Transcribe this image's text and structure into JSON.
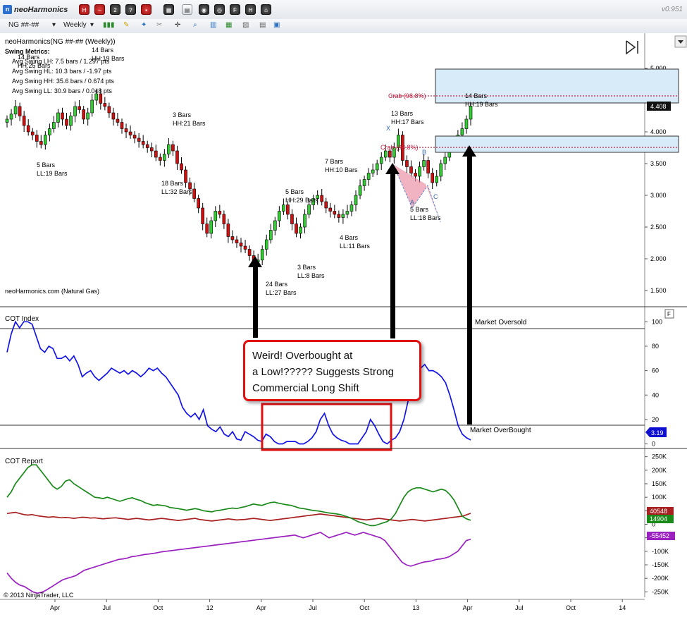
{
  "toolbar": {
    "app_name": "neoHarmonics",
    "version": "v0.951",
    "instrument": "NG ##-##",
    "interval": "Weekly"
  },
  "chart_data": [
    {
      "type": "candlestick",
      "title": "neoHarmonics(NG ##-## (Weekly))",
      "watermark": "neoHarmonics.com (Natural Gas)",
      "ylim": [
        1.3,
        5.5
      ],
      "y_ticks": [
        "5.000",
        "4.500",
        "4.000",
        "3.500",
        "3.000",
        "2.500",
        "2.000",
        "1.500"
      ],
      "x_ticks": [
        "Apr",
        "Jul",
        "Oct",
        "12",
        "Apr",
        "Jul",
        "Oct",
        "13",
        "Apr",
        "Jul",
        "Oct",
        "14"
      ],
      "last_price": "4.408",
      "swing_metrics": {
        "title": "Swing Metrics:",
        "lines": [
          "Avg Swing LH: 7.5 bars / 1.297 pts",
          "Avg Swing HL: 10.3 bars / -1.97 pts",
          "Avg Swing HH: 35.6 bars / 0.674 pts",
          "Avg Swing LL: 30.9 bars / 0.048 pts"
        ]
      },
      "swing_labels": [
        {
          "l1": "14 Bars",
          "l2": "HH:25 Bars"
        },
        {
          "l1": "14 Bars",
          "l2": "HH:19 Bars"
        },
        {
          "l1": "5 Bars",
          "l2": "LL:19 Bars"
        },
        {
          "l1": "3 Bars",
          "l2": "HH:21 Bars"
        },
        {
          "l1": "18 Bars",
          "l2": "LL:32 Bars"
        },
        {
          "l1": "24 Bars",
          "l2": "LL:27 Bars"
        },
        {
          "l1": "5 Bars",
          "l2": "HH:29 Bars"
        },
        {
          "l1": "3 Bars",
          "l2": "LL:8 Bars"
        },
        {
          "l1": "7 Bars",
          "l2": "HH:10 Bars"
        },
        {
          "l1": "4 Bars",
          "l2": "LL:11 Bars"
        },
        {
          "l1": "13 Bars",
          "l2": "HH:17 Bars"
        },
        {
          "l1": "5 Bars",
          "l2": "LL:18 Bars"
        },
        {
          "l1": "14 Bars",
          "l2": "HH:19 Bars"
        }
      ],
      "pattern": {
        "points": [
          "X",
          "A",
          "B",
          "C"
        ],
        "levels": [
          {
            "label": "Crab (98.8%)",
            "price": 4.58
          },
          {
            "label": "Crab (98.8%)",
            "price": 3.79
          }
        ]
      },
      "closes": [
        4.2,
        4.28,
        4.4,
        4.25,
        4.1,
        4.0,
        3.95,
        3.85,
        3.8,
        3.95,
        4.05,
        4.15,
        4.3,
        4.2,
        4.1,
        4.25,
        4.4,
        4.35,
        4.2,
        4.3,
        4.5,
        4.6,
        4.45,
        4.4,
        4.3,
        4.2,
        4.15,
        4.05,
        4.0,
        3.95,
        3.9,
        3.85,
        3.8,
        3.75,
        3.7,
        3.6,
        3.55,
        3.65,
        3.8,
        3.7,
        3.5,
        3.4,
        3.2,
        3.1,
        2.95,
        2.8,
        2.55,
        2.4,
        2.6,
        2.75,
        2.7,
        2.55,
        2.35,
        2.3,
        2.25,
        2.2,
        2.15,
        2.05,
        1.95,
        1.98,
        2.15,
        2.3,
        2.45,
        2.6,
        2.75,
        2.85,
        2.7,
        2.55,
        2.4,
        2.5,
        2.7,
        2.85,
        2.95,
        3.0,
        2.9,
        2.8,
        2.75,
        2.7,
        2.65,
        2.7,
        2.75,
        2.85,
        3.0,
        3.15,
        3.25,
        3.35,
        3.4,
        3.5,
        3.6,
        3.7,
        3.6,
        3.75,
        3.95,
        3.55,
        3.45,
        3.35,
        3.3,
        3.45,
        3.55,
        3.35,
        3.2,
        3.3,
        3.5,
        3.6,
        3.8,
        3.85,
        3.95,
        4.05,
        4.2,
        4.408
      ]
    },
    {
      "type": "line",
      "title": "COT Index",
      "ylim": [
        -2,
        110
      ],
      "y_ticks": [
        "100",
        "80",
        "60",
        "40",
        "20",
        "0"
      ],
      "last_value": "3.19",
      "annotations": [
        "Market Oversold",
        "Market OverBought"
      ],
      "series": [
        {
          "values": [
            75,
            90,
            100,
            95,
            100,
            100,
            98,
            88,
            78,
            75,
            80,
            78,
            70,
            70,
            72,
            68,
            72,
            65,
            55,
            58,
            60,
            55,
            52,
            55,
            58,
            62,
            60,
            58,
            60,
            57,
            60,
            58,
            55,
            58,
            62,
            60,
            62,
            58,
            55,
            50,
            45,
            40,
            30,
            25,
            22,
            25,
            20,
            28,
            15,
            12,
            10,
            14,
            8,
            6,
            10,
            4,
            3,
            10,
            8,
            6,
            3,
            2,
            8,
            6,
            2,
            0,
            0,
            2,
            2,
            2,
            0,
            0,
            2,
            5,
            10,
            20,
            25,
            15,
            8,
            5,
            3,
            2,
            0,
            0,
            0,
            5,
            10,
            20,
            15,
            8,
            2,
            0,
            3,
            5,
            10,
            20,
            35,
            55,
            60,
            62,
            65,
            60,
            60,
            58,
            55,
            50,
            40,
            28,
            15,
            8,
            5,
            3.19
          ]
        }
      ]
    },
    {
      "type": "line",
      "title": "COT Report",
      "ylim": [
        -270000,
        270000
      ],
      "y_ticks": [
        "250K",
        "200K",
        "150K",
        "100K",
        "50K",
        "0",
        "-50K",
        "-100K",
        "-150K",
        "-200K",
        "-250K"
      ],
      "last_values": [
        "40548",
        "14904",
        "-55452"
      ],
      "colors": [
        "#a82020",
        "#1a8a1a",
        "#9a20c0"
      ],
      "series": [
        {
          "values": [
            40000,
            42000,
            44000,
            40000,
            36000,
            34000,
            36000,
            32000,
            30000,
            28000,
            26000,
            28000,
            26000,
            24000,
            25000,
            24000,
            22000,
            24000,
            26000,
            25000,
            23000,
            24000,
            22000,
            20000,
            22000,
            23000,
            24000,
            22000,
            20000,
            18000,
            20000,
            22000,
            20000,
            18000,
            16000,
            18000,
            20000,
            22000,
            20000,
            18000,
            16000,
            14000,
            16000,
            18000,
            20000,
            22000,
            18000,
            16000,
            14000,
            12000,
            14000,
            16000,
            18000,
            20000,
            18000,
            16000,
            17000,
            18000,
            20000,
            22000,
            20000,
            18000,
            16000,
            14000,
            16000,
            18000,
            20000,
            22000,
            24000,
            26000,
            28000,
            30000,
            32000,
            34000,
            36000,
            38000,
            36000,
            34000,
            32000,
            30000,
            28000,
            26000,
            24000,
            22000,
            20000,
            18000,
            16000,
            18000,
            20000,
            22000,
            20000,
            18000,
            16000,
            14000,
            12000,
            14000,
            16000,
            18000,
            16000,
            14000,
            12000,
            14000,
            16000,
            18000,
            20000,
            22000,
            24000,
            26000,
            28000,
            30000,
            35000,
            40548
          ]
        },
        {
          "values": [
            100000,
            120000,
            150000,
            170000,
            190000,
            210000,
            220000,
            220000,
            200000,
            180000,
            160000,
            140000,
            130000,
            140000,
            160000,
            165000,
            150000,
            140000,
            130000,
            120000,
            110000,
            100000,
            98000,
            95000,
            100000,
            95000,
            90000,
            85000,
            90000,
            95000,
            98000,
            92000,
            88000,
            80000,
            75000,
            70000,
            72000,
            70000,
            68000,
            62000,
            60000,
            58000,
            55000,
            52000,
            55000,
            58000,
            55000,
            50000,
            48000,
            46000,
            50000,
            52000,
            55000,
            58000,
            60000,
            58000,
            62000,
            65000,
            70000,
            75000,
            72000,
            70000,
            75000,
            80000,
            82000,
            78000,
            75000,
            72000,
            70000,
            65000,
            60000,
            58000,
            55000,
            52000,
            50000,
            48000,
            45000,
            42000,
            40000,
            38000,
            35000,
            30000,
            25000,
            18000,
            10000,
            5000,
            0,
            -5000,
            -5000,
            0,
            5000,
            10000,
            20000,
            40000,
            70000,
            100000,
            120000,
            130000,
            135000,
            135000,
            130000,
            125000,
            120000,
            125000,
            130000,
            125000,
            110000,
            90000,
            60000,
            30000,
            20000,
            14904
          ]
        },
        {
          "values": [
            -180000,
            -200000,
            -215000,
            -225000,
            -230000,
            -240000,
            -250000,
            -255000,
            -252000,
            -245000,
            -235000,
            -225000,
            -215000,
            -205000,
            -200000,
            -195000,
            -190000,
            -180000,
            -170000,
            -165000,
            -160000,
            -155000,
            -150000,
            -145000,
            -140000,
            -135000,
            -130000,
            -128000,
            -125000,
            -120000,
            -118000,
            -115000,
            -112000,
            -110000,
            -108000,
            -105000,
            -102000,
            -100000,
            -98000,
            -96000,
            -94000,
            -92000,
            -90000,
            -88000,
            -86000,
            -84000,
            -82000,
            -80000,
            -78000,
            -76000,
            -74000,
            -72000,
            -70000,
            -68000,
            -66000,
            -64000,
            -62000,
            -60000,
            -58000,
            -56000,
            -54000,
            -52000,
            -50000,
            -48000,
            -46000,
            -44000,
            -42000,
            -40000,
            -45000,
            -50000,
            -45000,
            -40000,
            -35000,
            -30000,
            -40000,
            -50000,
            -45000,
            -40000,
            -35000,
            -30000,
            -35000,
            -40000,
            -35000,
            -30000,
            -35000,
            -40000,
            -45000,
            -50000,
            -60000,
            -80000,
            -100000,
            -120000,
            -140000,
            -150000,
            -155000,
            -150000,
            -145000,
            -140000,
            -138000,
            -135000,
            -130000,
            -128000,
            -125000,
            -120000,
            -110000,
            -100000,
            -80000,
            -60000,
            -55452
          ]
        }
      ]
    },
    {
      "type": "table",
      "title": "",
      "copyright": "© 2013 NinjaTrader, LLC"
    }
  ],
  "callout": {
    "lines": [
      "Weird! Overbought at",
      "a Low!????? Suggests Strong",
      "Commercial Long Shift"
    ]
  }
}
